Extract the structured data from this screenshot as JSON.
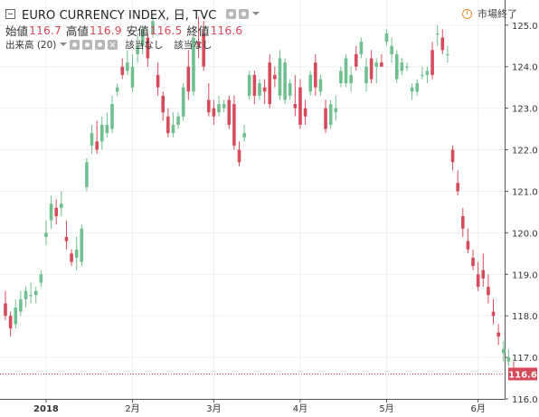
{
  "header": {
    "title": "EURO CURRENCY INDEX, 日, TVC",
    "ohlc": [
      {
        "label": "始値",
        "value": "116.7"
      },
      {
        "label": "高値",
        "value": "116.9"
      },
      {
        "label": "安値",
        "value": "116.5"
      },
      {
        "label": "終値",
        "value": "116.6"
      }
    ],
    "volume_label": "出来高 (20)",
    "na_1": "該当なし",
    "na_2": "該当なし",
    "market_status": "市場終了"
  },
  "colors": {
    "up": "#6fbf8f",
    "down": "#d64b5a",
    "grid": "#eef0f3",
    "axis_text": "#333333",
    "last_price_bg": "#d64b5a",
    "status_icon": "#f28c28"
  },
  "chart_data": {
    "type": "candlestick",
    "ylim": [
      116,
      125.3
    ],
    "y_ticks": [
      116,
      117,
      118,
      119,
      120,
      121,
      122,
      123,
      124,
      125
    ],
    "y_tick_labels": [
      "116.0",
      "117.0",
      "118.0",
      "119.0",
      "120.0",
      "121.0",
      "122.0",
      "123.0",
      "124.0",
      "125.0"
    ],
    "x_ticks": [
      {
        "label": "2018",
        "index": 8
      },
      {
        "label": "2月",
        "index": 25
      },
      {
        "label": "3月",
        "index": 41
      },
      {
        "label": "4月",
        "index": 58
      },
      {
        "label": "5月",
        "index": 75
      },
      {
        "label": "6月",
        "index": 93
      }
    ],
    "last_price": "116.6",
    "candles": [
      [
        118.3,
        118.6,
        117.9,
        118.0
      ],
      [
        118.0,
        118.1,
        117.5,
        117.7
      ],
      [
        117.8,
        118.4,
        117.7,
        118.2
      ],
      [
        118.1,
        118.6,
        118.0,
        118.4
      ],
      [
        118.4,
        118.7,
        118.2,
        118.6
      ],
      [
        118.5,
        118.8,
        118.3,
        118.5
      ],
      [
        118.5,
        118.7,
        118.3,
        118.6
      ],
      [
        118.8,
        119.1,
        118.7,
        119.0
      ],
      [
        119.9,
        120.3,
        119.7,
        120.0
      ],
      [
        120.3,
        120.9,
        120.1,
        120.7
      ],
      [
        120.6,
        120.8,
        120.2,
        120.4
      ],
      [
        120.6,
        121.0,
        120.4,
        120.7
      ],
      [
        119.9,
        120.3,
        119.6,
        119.8
      ],
      [
        119.5,
        119.6,
        119.2,
        119.3
      ],
      [
        119.4,
        119.9,
        119.1,
        119.6
      ],
      [
        119.3,
        120.2,
        119.2,
        120.1
      ],
      [
        121.1,
        121.8,
        121.0,
        121.7
      ],
      [
        122.1,
        122.6,
        121.9,
        122.4
      ],
      [
        122.2,
        122.7,
        121.9,
        122.0
      ],
      [
        122.2,
        122.8,
        122.0,
        122.6
      ],
      [
        122.4,
        122.9,
        122.3,
        122.6
      ],
      [
        122.5,
        123.3,
        122.4,
        123.1
      ],
      [
        123.4,
        123.6,
        123.3,
        123.5
      ],
      [
        124.0,
        124.2,
        123.7,
        123.8
      ],
      [
        123.9,
        124.4,
        123.8,
        124.1
      ],
      [
        123.5,
        124.3,
        123.4,
        124.0
      ],
      [
        124.3,
        124.8,
        124.1,
        124.5
      ],
      [
        124.5,
        125.0,
        124.3,
        124.9
      ],
      [
        124.7,
        124.8,
        124.0,
        124.2
      ],
      [
        124.8,
        125.2,
        124.7,
        125.1
      ],
      [
        123.8,
        124.1,
        123.3,
        123.5
      ],
      [
        123.3,
        123.4,
        122.7,
        122.9
      ],
      [
        122.8,
        123.0,
        122.3,
        122.4
      ],
      [
        122.4,
        122.9,
        122.3,
        122.6
      ],
      [
        122.6,
        122.9,
        122.5,
        122.8
      ],
      [
        122.8,
        123.6,
        122.7,
        123.5
      ],
      [
        124.0,
        124.4,
        123.2,
        123.4
      ],
      [
        123.4,
        124.9,
        123.3,
        124.7
      ],
      [
        124.6,
        125.2,
        124.2,
        124.5
      ],
      [
        124.8,
        125.1,
        123.9,
        124.0
      ],
      [
        123.2,
        123.6,
        122.8,
        122.9
      ],
      [
        123.0,
        123.2,
        122.6,
        122.8
      ],
      [
        122.9,
        123.3,
        122.8,
        123.1
      ],
      [
        123.0,
        123.2,
        122.9,
        123.1
      ],
      [
        123.2,
        123.3,
        122.5,
        122.6
      ],
      [
        123.1,
        123.3,
        122.0,
        122.1
      ],
      [
        122.0,
        122.2,
        121.6,
        121.7
      ],
      [
        122.3,
        122.6,
        122.2,
        122.4
      ],
      [
        123.3,
        123.9,
        123.2,
        123.8
      ],
      [
        123.8,
        123.9,
        123.1,
        123.3
      ],
      [
        123.3,
        123.7,
        123.2,
        123.6
      ],
      [
        123.5,
        123.7,
        123.1,
        123.4
      ],
      [
        124.1,
        124.3,
        123.0,
        123.1
      ],
      [
        123.8,
        124.0,
        123.5,
        123.7
      ],
      [
        123.3,
        124.4,
        123.2,
        124.2
      ],
      [
        123.2,
        124.2,
        123.1,
        124.1
      ],
      [
        123.3,
        123.7,
        123.2,
        123.6
      ],
      [
        123.1,
        123.8,
        122.8,
        123.0
      ],
      [
        123.5,
        123.7,
        122.5,
        122.6
      ],
      [
        123.0,
        123.2,
        122.6,
        122.8
      ],
      [
        123.4,
        123.9,
        123.3,
        123.8
      ],
      [
        124.1,
        124.3,
        123.3,
        123.5
      ],
      [
        123.4,
        123.8,
        123.3,
        123.7
      ],
      [
        123.0,
        123.2,
        122.4,
        122.5
      ],
      [
        122.6,
        123.2,
        122.5,
        123.1
      ],
      [
        122.9,
        123.3,
        122.7,
        123.0
      ],
      [
        123.6,
        124.0,
        123.5,
        123.9
      ],
      [
        123.6,
        124.3,
        123.5,
        124.2
      ],
      [
        123.6,
        124.0,
        123.4,
        123.8
      ],
      [
        124.3,
        124.5,
        123.9,
        124.0
      ],
      [
        124.3,
        124.7,
        124.2,
        124.6
      ],
      [
        123.6,
        124.2,
        123.4,
        124.0
      ],
      [
        124.2,
        124.4,
        123.6,
        123.7
      ],
      [
        124.0,
        124.2,
        123.6,
        124.1
      ],
      [
        124.1,
        124.3,
        124.0,
        124.0
      ],
      [
        124.6,
        124.9,
        124.5,
        124.8
      ],
      [
        124.3,
        124.7,
        124.1,
        124.5
      ],
      [
        123.7,
        124.4,
        123.6,
        124.3
      ],
      [
        123.9,
        124.2,
        123.8,
        124.1
      ],
      [
        124.0,
        124.1,
        123.9,
        124.0
      ],
      [
        123.4,
        123.6,
        123.2,
        123.5
      ],
      [
        123.4,
        123.7,
        123.3,
        123.6
      ],
      [
        123.8,
        124.0,
        123.7,
        123.8
      ],
      [
        123.8,
        124.0,
        123.6,
        123.9
      ],
      [
        124.4,
        124.6,
        123.7,
        123.8
      ],
      [
        124.8,
        125.0,
        124.5,
        124.8
      ],
      [
        124.7,
        124.9,
        124.3,
        124.4
      ],
      [
        124.3,
        124.5,
        124.1,
        124.3
      ],
      [
        122.0,
        122.1,
        121.5,
        121.7
      ],
      [
        121.2,
        121.5,
        120.9,
        121.0
      ],
      [
        120.4,
        120.6,
        119.9,
        120.1
      ],
      [
        119.8,
        120.1,
        119.5,
        119.6
      ],
      [
        119.4,
        119.6,
        119.1,
        119.2
      ],
      [
        119.0,
        119.3,
        118.6,
        118.7
      ],
      [
        119.1,
        119.5,
        118.7,
        118.9
      ],
      [
        118.7,
        119.0,
        118.3,
        118.5
      ],
      [
        118.1,
        118.4,
        117.8,
        118.0
      ],
      [
        117.6,
        117.8,
        117.3,
        117.5
      ],
      [
        117.1,
        117.4,
        116.9,
        117.2
      ],
      [
        116.9,
        117.2,
        116.8,
        117.0
      ],
      [
        116.7,
        116.9,
        116.5,
        116.6
      ]
    ]
  }
}
